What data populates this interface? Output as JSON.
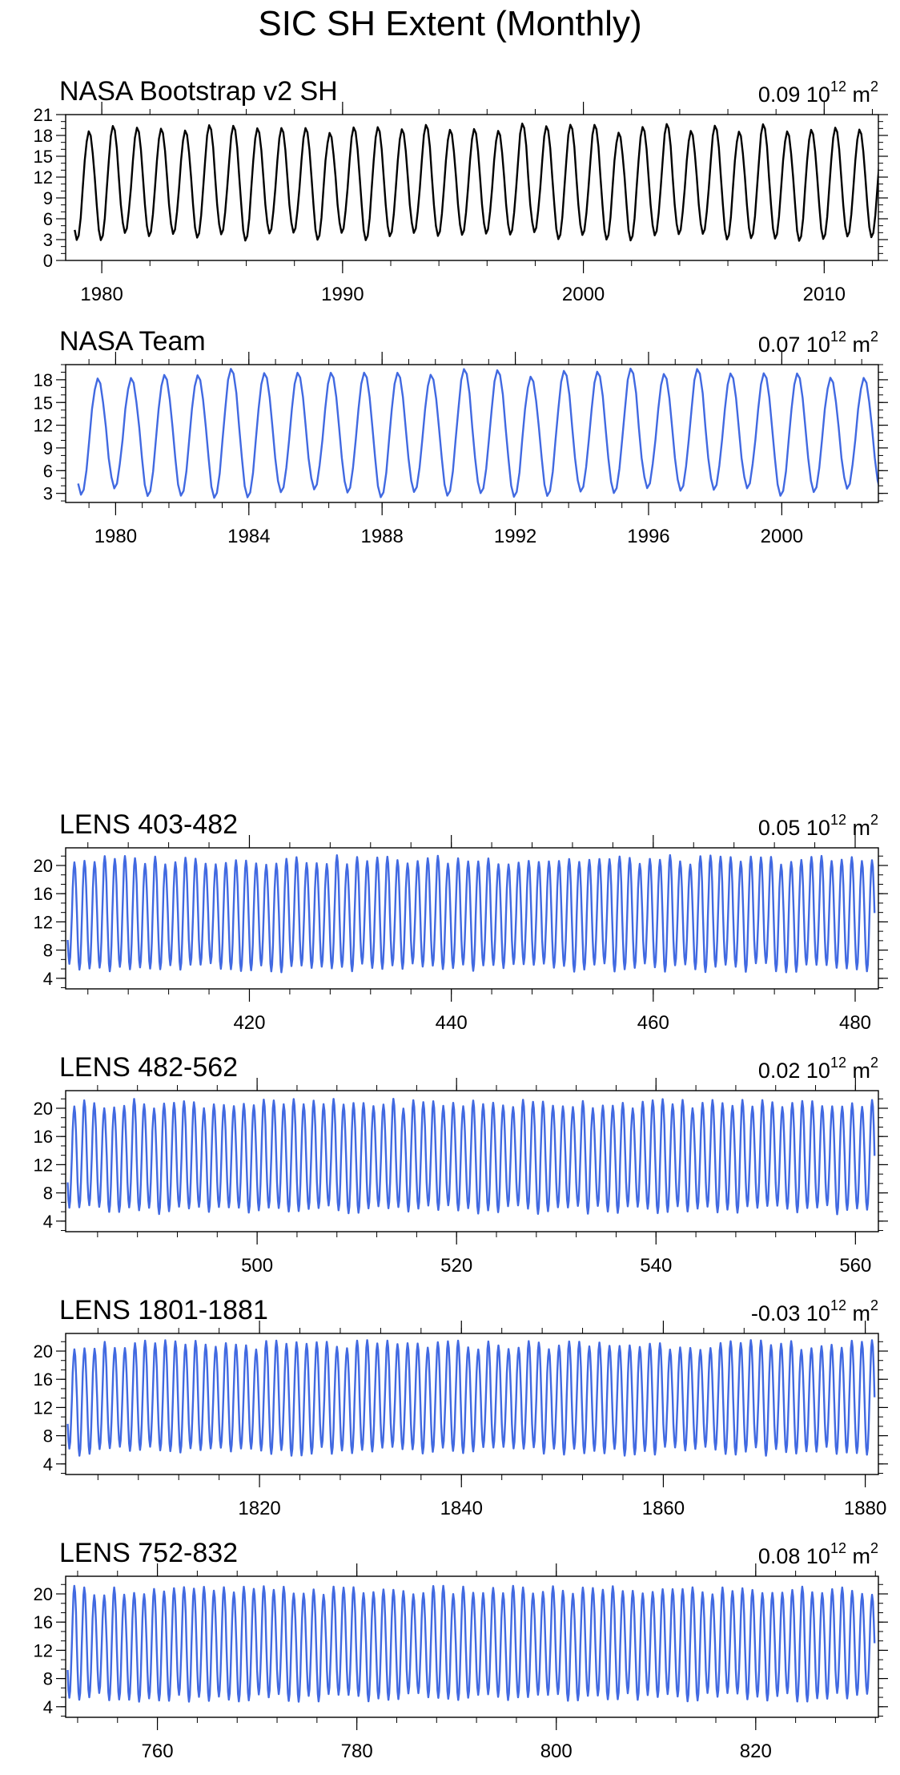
{
  "figure": {
    "title": "SIC SH Extent (Monthly)"
  },
  "colors": {
    "obs_line": "#000000",
    "model_line": "#4169e1",
    "axis": "#000000"
  },
  "chart_data": [
    {
      "type": "line",
      "title": "NASA Bootstrap v2 SH",
      "trend_value": "0.09",
      "trend_unit": "10",
      "trend_exp": "12",
      "trend_unit2": "m",
      "x_start": 1978.875,
      "n_months": 402,
      "phase": 0.6,
      "xlim": [
        1978.5,
        2012.25
      ],
      "ylim": [
        0,
        21
      ],
      "xticks": [
        1980,
        1990,
        2000,
        2010
      ],
      "yticks": [
        0,
        3,
        6,
        9,
        12,
        15,
        18,
        21
      ],
      "y_max_mean": 19.0,
      "y_min_mean": 3.4,
      "line_color": "#000000"
    },
    {
      "type": "line",
      "title": "NASA Team",
      "trend_value": "0.07",
      "trend_unit": "10",
      "trend_exp": "12",
      "trend_unit2": "m",
      "x_start": 1978.875,
      "n_months": 290,
      "phase": 0.6,
      "xlim": [
        1978.5,
        2002.9
      ],
      "ylim": [
        1.8,
        20.0
      ],
      "xticks": [
        1980,
        1984,
        1988,
        1992,
        1996,
        2000
      ],
      "yticks": [
        3,
        6,
        9,
        12,
        15,
        18
      ],
      "y_max_mean": 18.8,
      "y_min_mean": 3.0,
      "line_color": "#4169e1"
    },
    {
      "type": "line",
      "title": "LENS 403-482",
      "trend_value": "0.05",
      "trend_unit": "10",
      "trend_exp": "12",
      "trend_unit2": "m",
      "x_start": 402.0,
      "n_months": 960,
      "phase": 0.67,
      "xlim": [
        401.8,
        482.3
      ],
      "ylim": [
        2.5,
        22.5
      ],
      "xticks": [
        420,
        440,
        460,
        480
      ],
      "yticks": [
        4,
        8,
        12,
        16,
        20
      ],
      "y_max_mean": 20.7,
      "y_min_mean": 5.5,
      "line_color": "#4169e1"
    },
    {
      "type": "line",
      "title": "LENS 482-562",
      "trend_value": "0.02",
      "trend_unit": "10",
      "trend_exp": "12",
      "trend_unit2": "m",
      "x_start": 481.0,
      "n_months": 972,
      "phase": 0.67,
      "xlim": [
        480.8,
        562.3
      ],
      "ylim": [
        2.5,
        22.5
      ],
      "xticks": [
        500,
        520,
        540,
        560
      ],
      "yticks": [
        4,
        8,
        12,
        16,
        20
      ],
      "y_max_mean": 20.6,
      "y_min_mean": 5.6,
      "line_color": "#4169e1"
    },
    {
      "type": "line",
      "title": "LENS 1801-1881",
      "trend_value": "-0.03",
      "trend_unit": "10",
      "trend_exp": "12",
      "trend_unit2": "m",
      "x_start": 1801.0,
      "n_months": 960,
      "phase": 0.67,
      "xlim": [
        1800.8,
        1881.3
      ],
      "ylim": [
        2.5,
        22.5
      ],
      "xticks": [
        1820,
        1840,
        1860,
        1880
      ],
      "yticks": [
        4,
        8,
        12,
        16,
        20
      ],
      "y_max_mean": 20.8,
      "y_min_mean": 5.8,
      "line_color": "#4169e1"
    },
    {
      "type": "line",
      "title": "LENS 752-832",
      "trend_value": "0.08",
      "trend_unit": "10",
      "trend_exp": "12",
      "trend_unit2": "m",
      "x_start": 751.0,
      "n_months": 972,
      "phase": 0.67,
      "xlim": [
        750.8,
        832.3
      ],
      "ylim": [
        2.5,
        22.5
      ],
      "xticks": [
        760,
        780,
        800,
        820
      ],
      "yticks": [
        4,
        8,
        12,
        16,
        20
      ],
      "y_max_mean": 20.4,
      "y_min_mean": 5.3,
      "line_color": "#4169e1"
    }
  ]
}
